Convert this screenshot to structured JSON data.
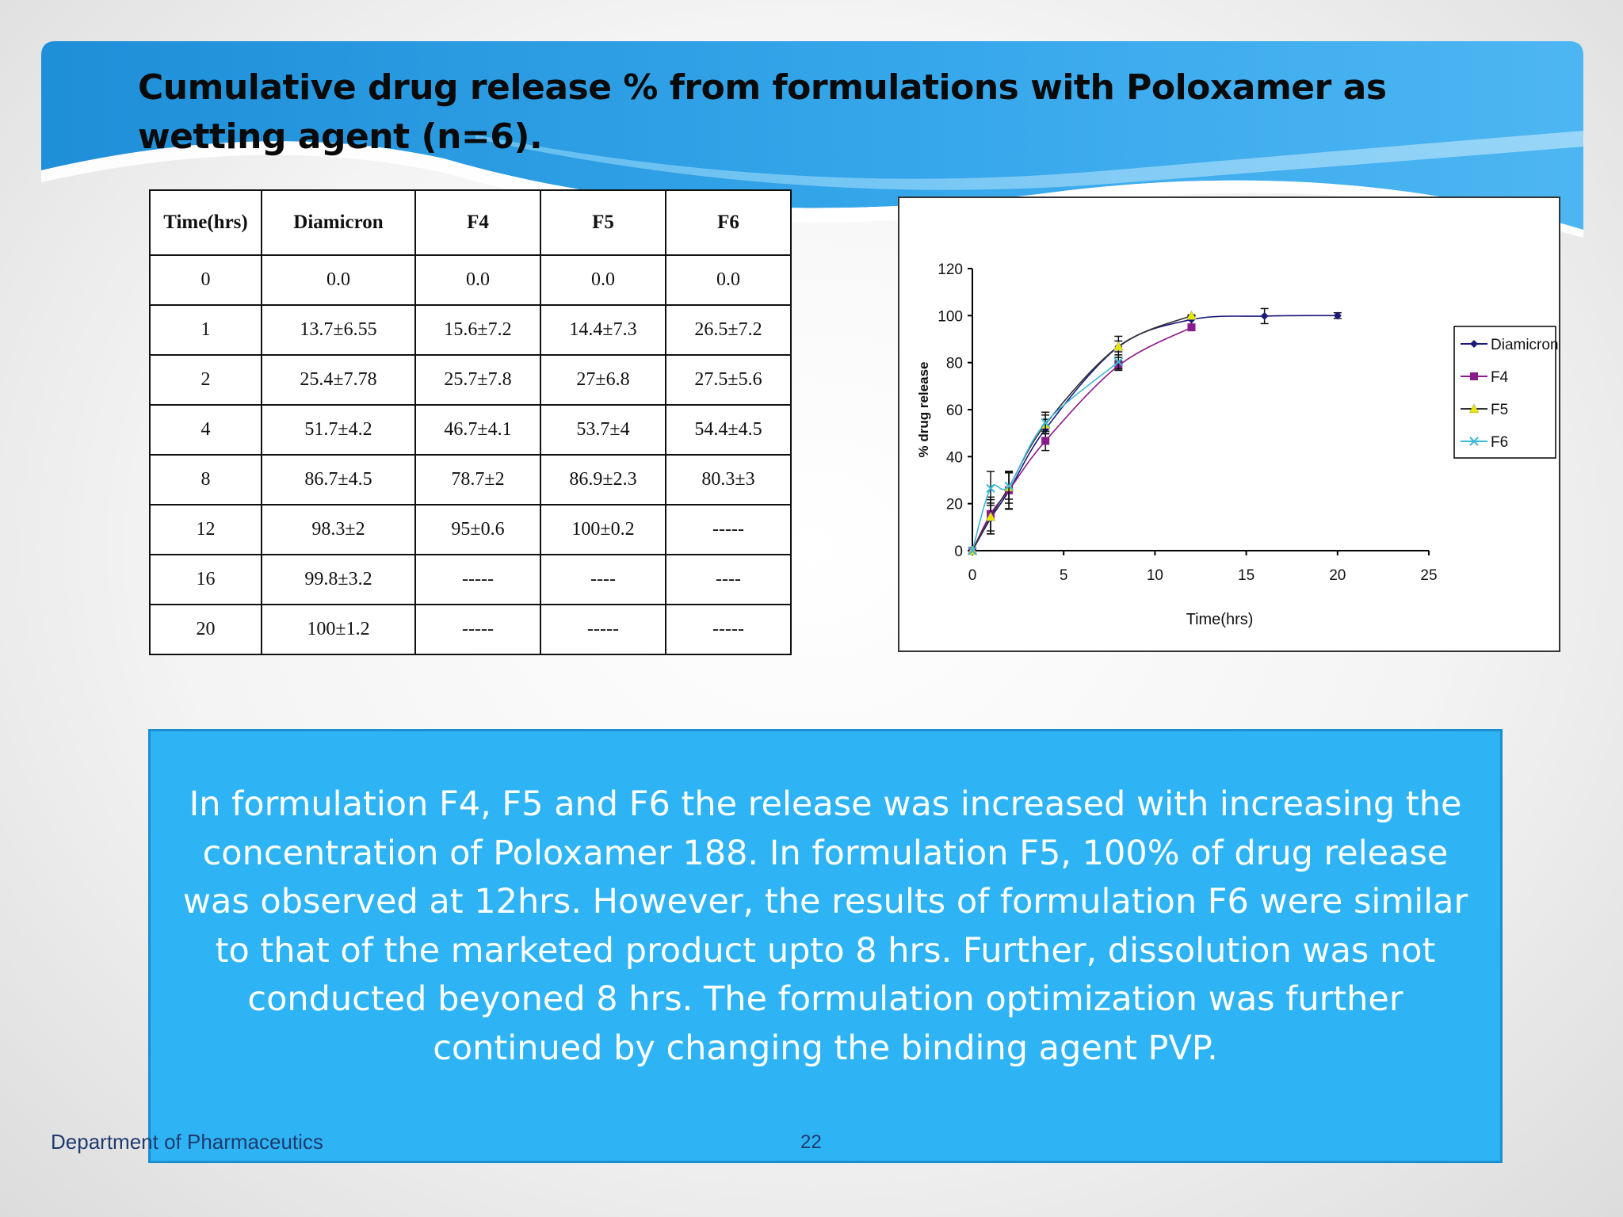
{
  "slide": {
    "title": "Cumulative drug release % from formulations with Poloxamer as wetting agent (n=6).",
    "summary": "In formulation F4, F5 and F6 the release was increased with increasing the concentration of Poloxamer 188. In formulation F5, 100% of drug release was observed at 12hrs. However, the results of formulation F6 were similar to that of the marketed product upto 8 hrs. Further, dissolution was not conducted beyoned 8 hrs. The formulation optimization was further continued by changing the binding agent PVP.",
    "footer_department": "Department of Pharmaceutics",
    "page_number": "22"
  },
  "table": {
    "headers": [
      "Time(hrs)",
      "Diamicron",
      "F4",
      "F5",
      "F6"
    ],
    "rows": [
      [
        "0",
        "0.0",
        "0.0",
        "0.0",
        "0.0"
      ],
      [
        "1",
        "13.7±6.55",
        "15.6±7.2",
        "14.4±7.3",
        "26.5±7.2"
      ],
      [
        "2",
        "25.4±7.78",
        "25.7±7.8",
        "27±6.8",
        "27.5±5.6"
      ],
      [
        "4",
        "51.7±4.2",
        "46.7±4.1",
        "53.7±4",
        "54.4±4.5"
      ],
      [
        "8",
        "86.7±4.5",
        "78.7±2",
        "86.9±2.3",
        "80.3±3"
      ],
      [
        "12",
        "98.3±2",
        "95±0.6",
        "100±0.2",
        "-----"
      ],
      [
        "16",
        "99.8±3.2",
        "-----",
        "----",
        "----"
      ],
      [
        "20",
        "100±1.2",
        "-----",
        "-----",
        "-----"
      ]
    ]
  },
  "chart_data": {
    "type": "line",
    "title": "",
    "xlabel": "Time(hrs)",
    "ylabel": "% drug release",
    "xlim": [
      0,
      25
    ],
    "ylim": [
      0,
      120
    ],
    "xticks": [
      "0",
      "5",
      "10",
      "15",
      "20",
      "25"
    ],
    "yticks": [
      "0",
      "20",
      "40",
      "60",
      "80",
      "100",
      "120"
    ],
    "grid": false,
    "legend_position": "right",
    "series": [
      {
        "name": "Diamicron",
        "color": "#1a1a7a",
        "marker": "diamond",
        "x": [
          0,
          1,
          2,
          4,
          8,
          12,
          16,
          20
        ],
        "y": [
          0.0,
          13.7,
          25.4,
          51.7,
          86.7,
          98.3,
          99.8,
          100
        ],
        "err": [
          0,
          6.55,
          7.78,
          4.2,
          4.5,
          2,
          3.2,
          1.2
        ]
      },
      {
        "name": "F4",
        "color": "#8b1a8b",
        "marker": "square",
        "x": [
          0,
          1,
          2,
          4,
          8,
          12
        ],
        "y": [
          0.0,
          15.6,
          25.7,
          46.7,
          78.7,
          95
        ],
        "err": [
          0,
          7.2,
          7.8,
          4.1,
          2,
          0.6
        ]
      },
      {
        "name": "F5",
        "color": "#e6e600",
        "marker": "triangle",
        "x": [
          0,
          1,
          2,
          4,
          8,
          12
        ],
        "y": [
          0.0,
          14.4,
          27,
          53.7,
          86.9,
          100
        ],
        "err": [
          0,
          7.3,
          6.8,
          4,
          2.3,
          0.2
        ]
      },
      {
        "name": "F6",
        "color": "#3cb8d8",
        "marker": "x",
        "x": [
          0,
          1,
          2,
          4,
          8
        ],
        "y": [
          0.0,
          26.5,
          27.5,
          54.4,
          80.3
        ],
        "err": [
          0,
          7.2,
          5.6,
          4.5,
          3
        ]
      }
    ]
  }
}
